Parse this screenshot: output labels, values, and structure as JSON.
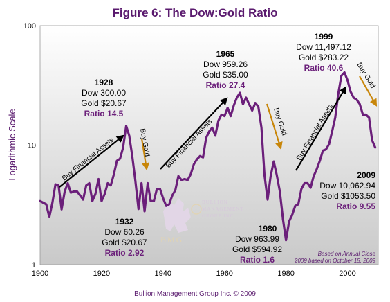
{
  "title": "Figure 6: The Dow:Gold Ratio",
  "footer": "Bullion Management Group Inc. © 2009",
  "notes": [
    "Based on Annual Close",
    "2009 based on October 15, 2009"
  ],
  "logo": {
    "lines": [
      "BULLION",
      "MANAGEMENT",
      "GROUP INC."
    ],
    "monogram": "BMG"
  },
  "arrow_labels": [
    "Buy Financial Assets",
    "Buy Gold"
  ],
  "annotations": [
    {
      "lines": [
        "1928",
        "Dow 300.00",
        "Gold $20.67",
        "Ratio 14.5"
      ]
    },
    {
      "lines": [
        "1932",
        "Dow 60.26",
        "Gold $20.67",
        "Ratio 2.92"
      ]
    },
    {
      "lines": [
        "1965",
        "Dow 959.26",
        "Gold $35.00",
        "Ratio 27.4"
      ]
    },
    {
      "lines": [
        "1980",
        "Dow 963.99",
        "Gold $594.92",
        "Ratio 1.6"
      ]
    },
    {
      "lines": [
        "1999",
        "Dow 11,497.12",
        "Gold $283.22",
        "Ratio 40.6"
      ]
    },
    {
      "lines": [
        "2009",
        "Dow 10,062.94",
        "Gold $1053.50",
        "Ratio 9.55"
      ]
    }
  ],
  "colors": {
    "series": "#6b1f7a",
    "plot_bg_top": "#ffffff",
    "plot_bg_bottom": "#c9c9c9",
    "gold_arrow": "#c8860a",
    "black_arrow": "#000000"
  },
  "chart_data": {
    "type": "line",
    "title": "Figure 6: The Dow:Gold Ratio",
    "xlabel": "",
    "ylabel": "Logarithmic Scale",
    "yscale": "log",
    "xlim": [
      1900,
      2010
    ],
    "ylim": [
      1,
      100
    ],
    "x_ticks": [
      "1900",
      "1920",
      "1940",
      "1960",
      "1980",
      "2000"
    ],
    "y_ticks": [
      "1",
      "10",
      "100"
    ],
    "grid": "horizontal at 10",
    "series": [
      {
        "x": [
          1900,
          1901,
          1902,
          1903,
          1904,
          1905,
          1906,
          1907,
          1908,
          1909,
          1910,
          1911,
          1912,
          1913,
          1914,
          1915,
          1916,
          1917,
          1918,
          1919,
          1920,
          1921,
          1922,
          1923,
          1924,
          1925,
          1926,
          1927,
          1928,
          1929,
          1930,
          1931,
          1932,
          1933,
          1934,
          1935,
          1936,
          1937,
          1938,
          1939,
          1940,
          1941,
          1942,
          1943,
          1944,
          1945,
          1946,
          1947,
          1948,
          1949,
          1950,
          1951,
          1952,
          1953,
          1954,
          1955,
          1956,
          1957,
          1958,
          1959,
          1960,
          1961,
          1962,
          1963,
          1964,
          1965,
          1966,
          1967,
          1968,
          1969,
          1970,
          1971,
          1972,
          1973,
          1974,
          1975,
          1976,
          1977,
          1978,
          1979,
          1980,
          1981,
          1982,
          1983,
          1984,
          1985,
          1986,
          1987,
          1988,
          1989,
          1990,
          1991,
          1992,
          1993,
          1994,
          1995,
          1996,
          1997,
          1998,
          1999,
          2000,
          2001,
          2002,
          2003,
          2004,
          2005,
          2006,
          2007,
          2008,
          2009
        ],
        "y": [
          3.4,
          3.3,
          3.2,
          2.5,
          3.3,
          4.7,
          4.6,
          2.9,
          4.1,
          4.8,
          4.0,
          4.1,
          4.1,
          3.8,
          3.5,
          4.6,
          4.8,
          3.4,
          3.9,
          5.2,
          3.4,
          3.9,
          4.8,
          4.6,
          5.7,
          7.4,
          7.7,
          9.5,
          14.5,
          12.0,
          8.0,
          5.0,
          2.92,
          4.8,
          2.8,
          4.8,
          3.4,
          3.4,
          4.3,
          4.3,
          3.6,
          3.1,
          3.2,
          3.8,
          4.2,
          5.5,
          5.1,
          5.2,
          5.1,
          5.7,
          6.9,
          7.6,
          8.1,
          7.9,
          11.5,
          13.0,
          14.0,
          12.0,
          16.0,
          18.0,
          17.5,
          20.5,
          17.5,
          21.5,
          25.0,
          27.4,
          22.0,
          25.0,
          22.0,
          19.5,
          22.5,
          21.0,
          14.0,
          5.6,
          3.5,
          5.5,
          7.3,
          5.6,
          4.1,
          2.4,
          1.6,
          2.3,
          2.6,
          3.1,
          3.2,
          4.3,
          4.8,
          4.8,
          4.4,
          5.5,
          6.3,
          7.4,
          9.0,
          9.2,
          10.2,
          13.0,
          17.0,
          27.0,
          38.0,
          40.6,
          35.0,
          28.0,
          25.0,
          24.0,
          22.0,
          18.0,
          18.0,
          17.0,
          11.0,
          9.55
        ]
      }
    ]
  }
}
